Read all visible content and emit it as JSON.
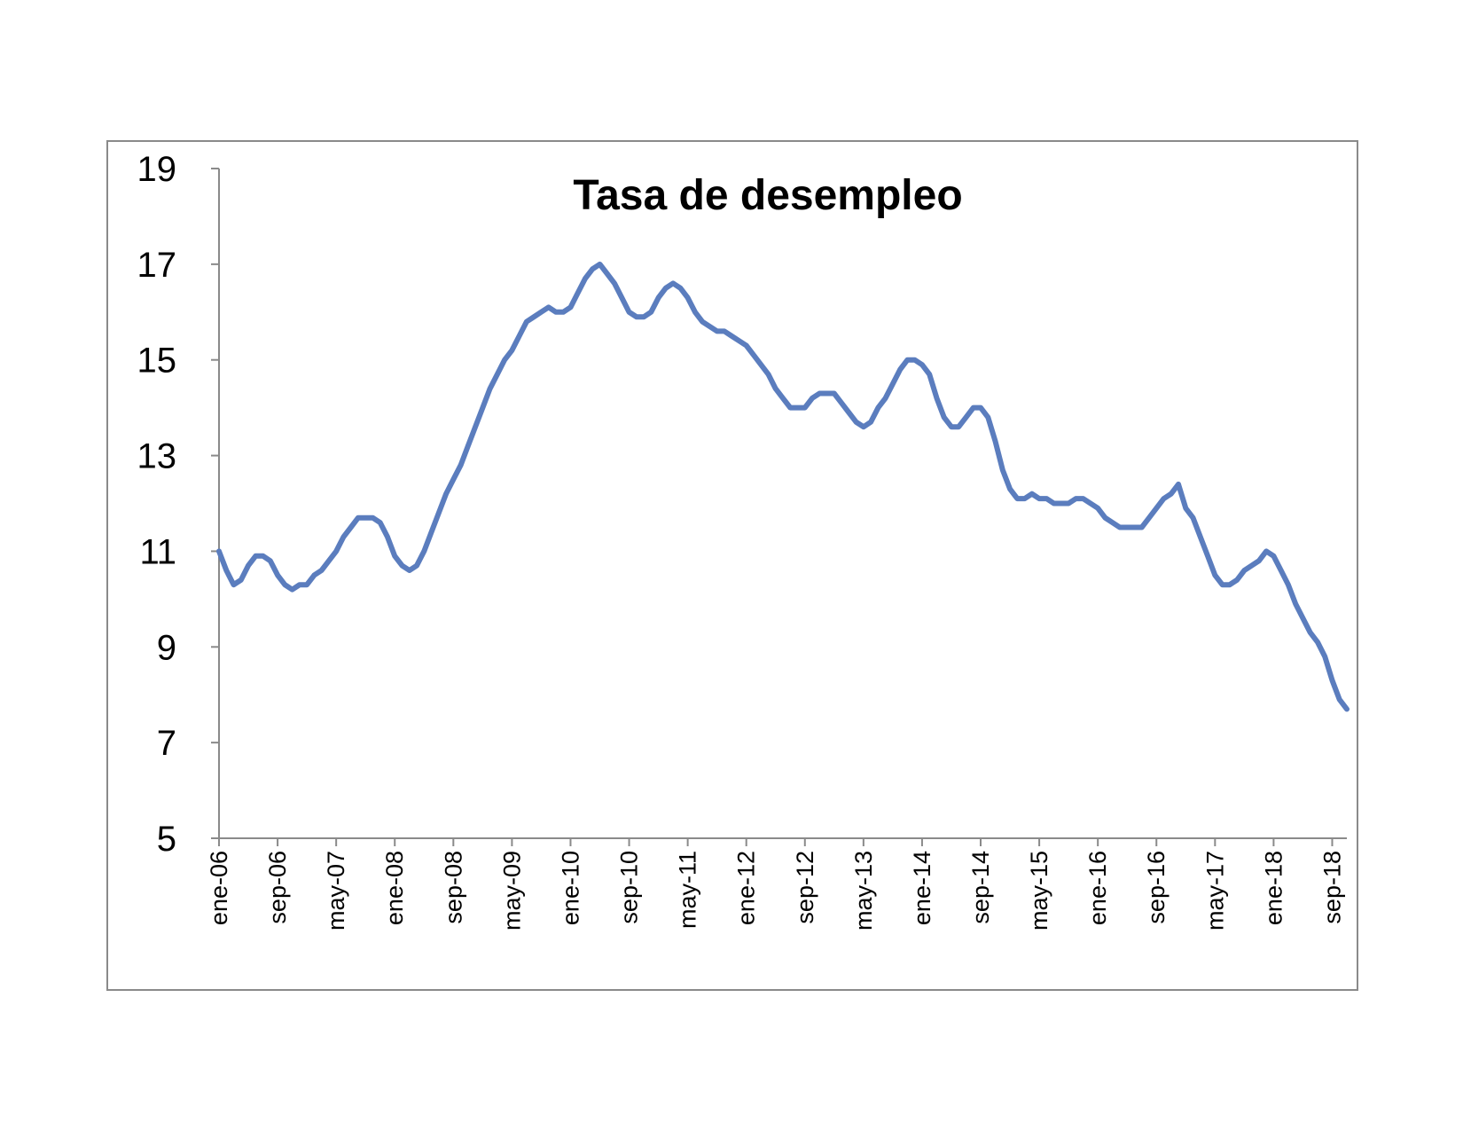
{
  "chart_data": {
    "type": "line",
    "title": "Tasa de desempleo",
    "xlabel": "",
    "ylabel": "",
    "ylim": [
      5,
      19
    ],
    "yticks": [
      5,
      7,
      9,
      11,
      13,
      15,
      17,
      19
    ],
    "xticks": [
      "ene-06",
      "sep-06",
      "may-07",
      "ene-08",
      "sep-08",
      "may-09",
      "ene-10",
      "sep-10",
      "may-11",
      "ene-12",
      "sep-12",
      "may-13",
      "ene-14",
      "sep-14",
      "may-15",
      "ene-16",
      "sep-16",
      "may-17",
      "ene-18",
      "sep-18"
    ],
    "grid": false,
    "legend": "none",
    "x_start": "ene-06",
    "x_step_months": 1,
    "series": [
      {
        "color": "#5B7DBE",
        "values": [
          11.0,
          10.6,
          10.3,
          10.4,
          10.7,
          10.9,
          10.9,
          10.8,
          10.5,
          10.3,
          10.2,
          10.3,
          10.3,
          10.5,
          10.6,
          10.8,
          11.0,
          11.3,
          11.5,
          11.7,
          11.7,
          11.7,
          11.6,
          11.3,
          10.9,
          10.7,
          10.6,
          10.7,
          11.0,
          11.4,
          11.8,
          12.2,
          12.5,
          12.8,
          13.2,
          13.6,
          14.0,
          14.4,
          14.7,
          15.0,
          15.2,
          15.5,
          15.8,
          15.9,
          16.0,
          16.1,
          16.0,
          16.0,
          16.1,
          16.4,
          16.7,
          16.9,
          17.0,
          16.8,
          16.6,
          16.3,
          16.0,
          15.9,
          15.9,
          16.0,
          16.3,
          16.5,
          16.6,
          16.5,
          16.3,
          16.0,
          15.8,
          15.7,
          15.6,
          15.6,
          15.5,
          15.4,
          15.3,
          15.1,
          14.9,
          14.7,
          14.4,
          14.2,
          14.0,
          14.0,
          14.0,
          14.2,
          14.3,
          14.3,
          14.3,
          14.1,
          13.9,
          13.7,
          13.6,
          13.7,
          14.0,
          14.2,
          14.5,
          14.8,
          15.0,
          15.0,
          14.9,
          14.7,
          14.2,
          13.8,
          13.6,
          13.6,
          13.8,
          14.0,
          14.0,
          13.8,
          13.3,
          12.7,
          12.3,
          12.1,
          12.1,
          12.2,
          12.1,
          12.1,
          12.0,
          12.0,
          12.0,
          12.1,
          12.1,
          12.0,
          11.9,
          11.7,
          11.6,
          11.5,
          11.5,
          11.5,
          11.5,
          11.7,
          11.9,
          12.1,
          12.2,
          12.4,
          11.9,
          11.7,
          11.3,
          10.9,
          10.5,
          10.3,
          10.3,
          10.4,
          10.6,
          10.7,
          10.8,
          11.0,
          10.9,
          10.6,
          10.3,
          9.9,
          9.6,
          9.3,
          9.1,
          8.8,
          8.3,
          7.9,
          7.7
        ]
      }
    ]
  }
}
